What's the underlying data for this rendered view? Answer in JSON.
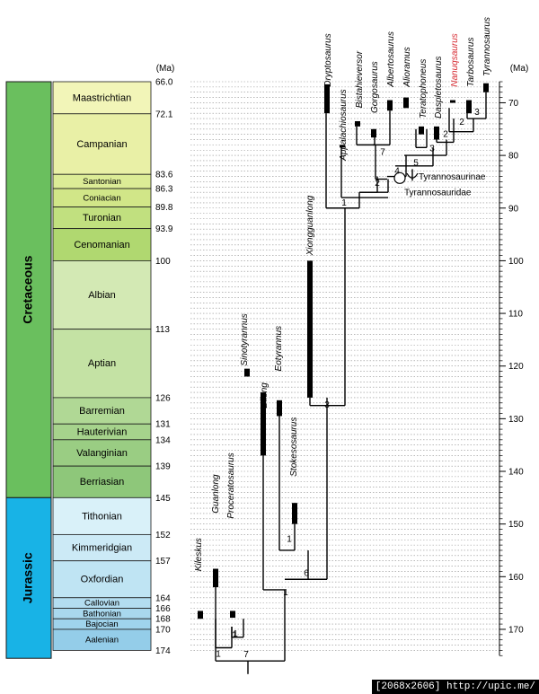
{
  "units": {
    "left": "(Ma)",
    "right": "(Ma)"
  },
  "eras": [
    {
      "name": "Cretaceous",
      "color": "#6abf5e",
      "start": 145,
      "end": 66.0
    },
    {
      "name": "Jurassic",
      "color": "#18b3e6",
      "start": 175.5,
      "end": 145
    }
  ],
  "stages": [
    {
      "name": "Maastrichtian",
      "start": 72.1,
      "end": 66.0,
      "color": "#f2f5b8",
      "font": "stage"
    },
    {
      "name": "Campanian",
      "start": 83.6,
      "end": 72.1,
      "color": "#e9f0a6",
      "font": "stage"
    },
    {
      "name": "Santonian",
      "start": 86.3,
      "end": 83.6,
      "color": "#dcec96",
      "font": "small"
    },
    {
      "name": "Coniacian",
      "start": 89.8,
      "end": 86.3,
      "color": "#d1e688",
      "font": "small"
    },
    {
      "name": "Turonian",
      "start": 93.9,
      "end": 89.8,
      "color": "#c1e07f",
      "font": "stage"
    },
    {
      "name": "Cenomanian",
      "start": 100,
      "end": 93.9,
      "color": "#b0d870",
      "font": "stage"
    },
    {
      "name": "Albian",
      "start": 113,
      "end": 100,
      "color": "#d3e9b4",
      "font": "stage"
    },
    {
      "name": "Aptian",
      "start": 126,
      "end": 113,
      "color": "#c4e2a4",
      "font": "stage"
    },
    {
      "name": "Barremian",
      "start": 131,
      "end": 126,
      "color": "#b0d895",
      "font": "stage"
    },
    {
      "name": "Hauterivian",
      "start": 134,
      "end": 131,
      "color": "#a6d38c",
      "font": "stage"
    },
    {
      "name": "Valanginian",
      "start": 139,
      "end": 134,
      "color": "#9acd83",
      "font": "stage"
    },
    {
      "name": "Berriasian",
      "start": 145,
      "end": 139,
      "color": "#8ec77a",
      "font": "stage"
    },
    {
      "name": "Tithonian",
      "start": 152,
      "end": 145,
      "color": "#d9f1f9",
      "font": "stage"
    },
    {
      "name": "Kimmeridgian",
      "start": 157,
      "end": 152,
      "color": "#cceaf6",
      "font": "stage"
    },
    {
      "name": "Oxfordian",
      "start": 164,
      "end": 157,
      "color": "#bfe4f3",
      "font": "stage"
    },
    {
      "name": "Callovian",
      "start": 166,
      "end": 164,
      "color": "#b3ddf0",
      "font": "small"
    },
    {
      "name": "Bathonian",
      "start": 168,
      "end": 166,
      "color": "#a9d8ee",
      "font": "small"
    },
    {
      "name": "Bajocian",
      "start": 170,
      "end": 168,
      "color": "#9fd3ec",
      "font": "small"
    },
    {
      "name": "Aalenian",
      "start": 174,
      "end": 170,
      "color": "#94cde9",
      "font": "small"
    }
  ],
  "boundary_labels": [
    "66.0",
    "72.1",
    "83.6",
    "86.3",
    "89.8",
    "93.9",
    "100",
    "113",
    "126",
    "131",
    "134",
    "139",
    "145",
    "152",
    "157",
    "164",
    "166",
    "168",
    "170",
    "174"
  ],
  "boundary_values": [
    66.0,
    72.1,
    83.6,
    86.3,
    89.8,
    93.9,
    100,
    113,
    126,
    131,
    134,
    139,
    145,
    152,
    157,
    164,
    166,
    168,
    170,
    174
  ],
  "right_ticks": [
    70,
    80,
    90,
    100,
    110,
    120,
    130,
    140,
    150,
    160,
    170
  ],
  "taxa": [
    {
      "name": "Kileskus",
      "first": 166.5,
      "last": 168,
      "color": "#000000"
    },
    {
      "name": "Guanlong",
      "first": 158.5,
      "last": 162,
      "color": "#000000"
    },
    {
      "name": "Proceratosaurus",
      "first": 166.5,
      "last": 167.8,
      "color": "#000000"
    },
    {
      "name": "Sinotyrannus",
      "first": 120.5,
      "last": 122,
      "color": "#000000"
    },
    {
      "name": "Dilong",
      "first": 125,
      "last": 137,
      "color": "#000000"
    },
    {
      "name": "Eotyrannus",
      "first": 126.5,
      "last": 129.5,
      "color": "#000000"
    },
    {
      "name": "Stokesosaurus",
      "first": 146,
      "last": 150,
      "color": "#000000"
    },
    {
      "name": "Xiongguanlong",
      "first": 100,
      "last": 126,
      "color": "#000000"
    },
    {
      "name": "Dryptosaurus",
      "first": 66.5,
      "last": 72,
      "color": "#000000"
    },
    {
      "name": "Appalachiosaurus",
      "first": 78,
      "last": 78.3,
      "color": "#000000"
    },
    {
      "name": "Bistahieversor",
      "first": 73.5,
      "last": 74.5,
      "color": "#000000"
    },
    {
      "name": "Gorgosaurus",
      "first": 75,
      "last": 76.6,
      "color": "#000000"
    },
    {
      "name": "Albertosaurus",
      "first": 69.5,
      "last": 71.5,
      "color": "#000000"
    },
    {
      "name": "Alioramus",
      "first": 69,
      "last": 71,
      "color": "#000000"
    },
    {
      "name": "Teratophoneus",
      "first": 74.5,
      "last": 76,
      "color": "#000000"
    },
    {
      "name": "Daspletosaurus",
      "first": 74.5,
      "last": 77,
      "color": "#000000"
    },
    {
      "name": "Nanuqsaurus",
      "first": 69.5,
      "last": 70,
      "color": "#d6282f"
    },
    {
      "name": "Tarbosaurus",
      "first": 69.5,
      "last": 72,
      "color": "#000000"
    },
    {
      "name": "Tyrannosaurus",
      "first": 66.3,
      "last": 68,
      "color": "#000000"
    }
  ],
  "node_labels": [
    "1",
    "1",
    "7",
    "1",
    "1",
    "6",
    "3",
    "1",
    "1",
    "2",
    "7",
    "4",
    "5",
    "3",
    "2",
    "2",
    "3"
  ],
  "clade_labels": [
    "Tyrannosaurinae",
    "Tyrannosauridae"
  ],
  "watermark": "[2068x2606] http://upic.me/"
}
